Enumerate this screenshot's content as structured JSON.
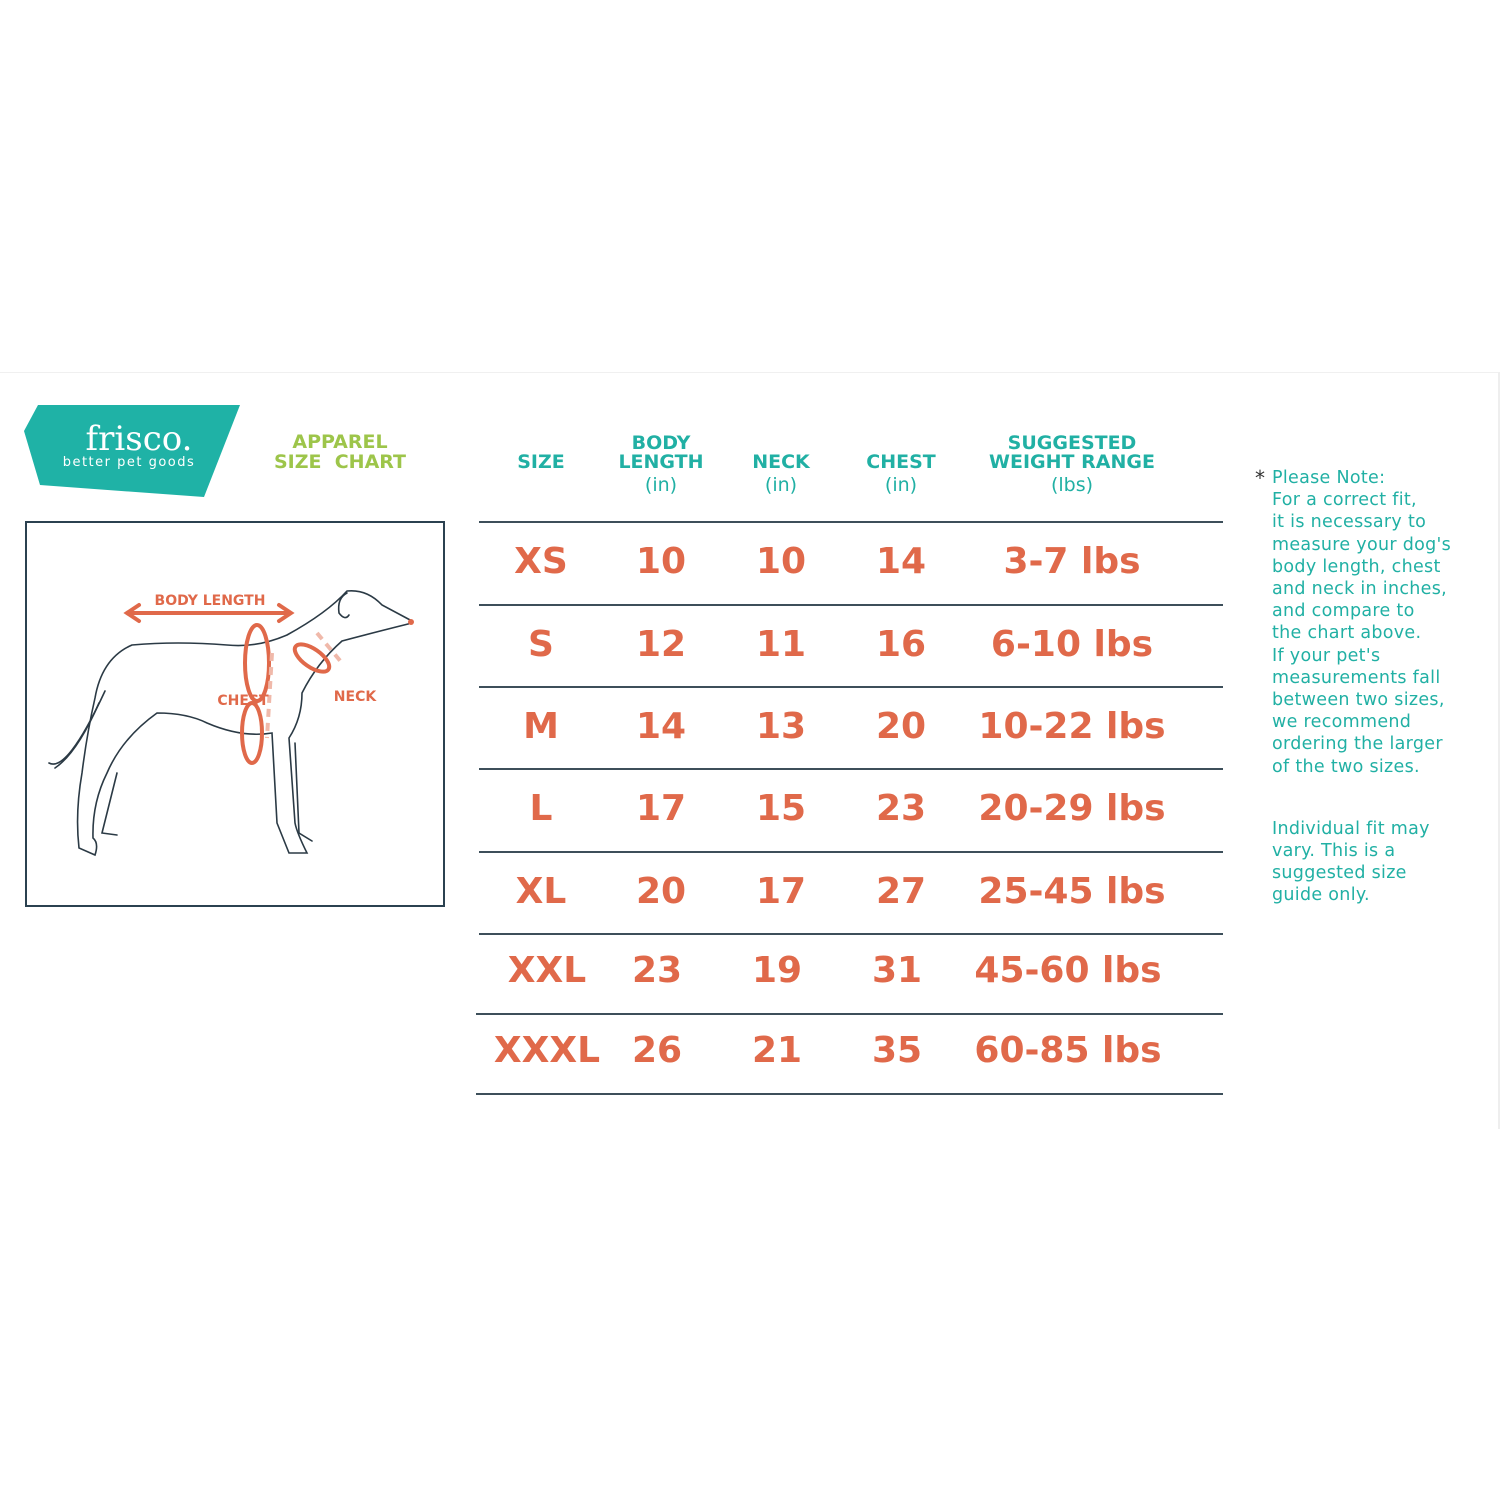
{
  "brand": {
    "name": "frisco.",
    "tagline": "better pet goods",
    "color": "#1fb2a6"
  },
  "chart_title": {
    "line1": "APPAREL",
    "line2": "SIZE  CHART",
    "color": "#9dc54a"
  },
  "diagram": {
    "labels": {
      "body_length": "BODY LENGTH",
      "chest": "CHEST",
      "neck": "NECK"
    },
    "accent": "#e0694a"
  },
  "table": {
    "headers": [
      {
        "title": "SIZE",
        "unit": ""
      },
      {
        "title": "BODY\nLENGTH",
        "unit": "(in)"
      },
      {
        "title": "NECK",
        "unit": "(in)"
      },
      {
        "title": "CHEST",
        "unit": "(in)"
      },
      {
        "title": "SUGGESTED\nWEIGHT RANGE",
        "unit": "(lbs)"
      }
    ],
    "rows": [
      [
        "XS",
        "10",
        "10",
        "14",
        "3-7 lbs"
      ],
      [
        "S",
        "12",
        "11",
        "16",
        "6-10 lbs"
      ],
      [
        "M",
        "14",
        "13",
        "20",
        "10-22 lbs"
      ],
      [
        "L",
        "17",
        "15",
        "23",
        "20-29 lbs"
      ],
      [
        "XL",
        "20",
        "17",
        "27",
        "25-45 lbs"
      ],
      [
        "XXL",
        "23",
        "19",
        "31",
        "45-60 lbs"
      ],
      [
        "XXXL",
        "26",
        "21",
        "35",
        "60-85 lbs"
      ]
    ],
    "header_color": "#21b0a4",
    "value_color": "#e0694a"
  },
  "note": {
    "asterisk": "*",
    "paragraph1": "Please Note:\nFor a correct fit,\nit is necessary to\nmeasure your dog's\nbody length, chest\nand neck in inches,\nand compare to\nthe chart above.\nIf your pet's\nmeasurements fall\nbetween two sizes,\nwe recommend\nordering the larger\nof the two sizes.",
    "paragraph2": "Individual fit may\nvary. This is a\nsuggested size\nguide only."
  }
}
